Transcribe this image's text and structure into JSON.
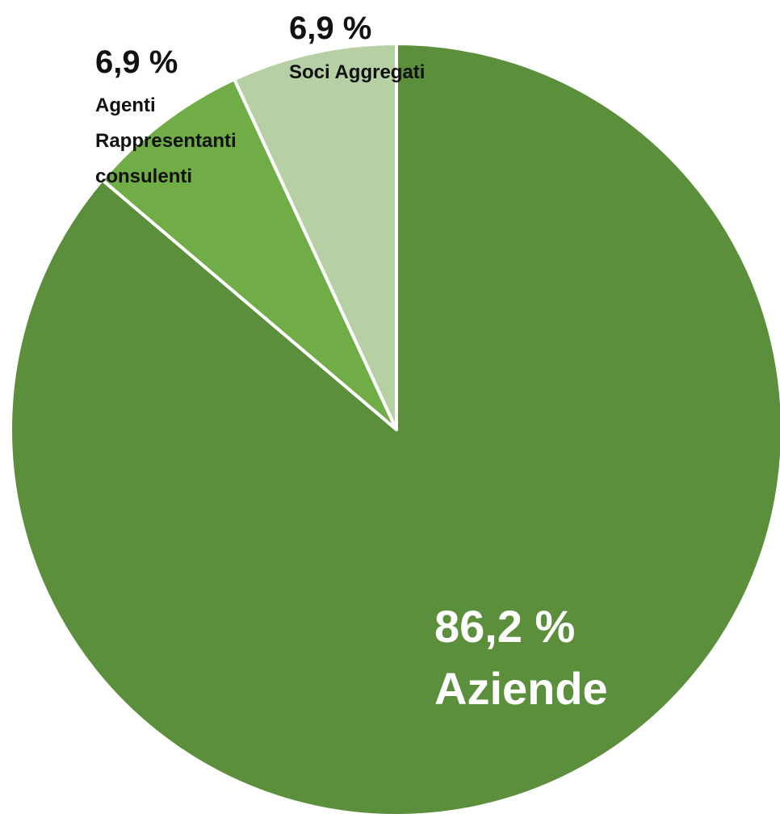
{
  "chart_data": {
    "type": "pie",
    "slices": [
      {
        "value_label": "86,2 %",
        "value": 86.2,
        "label_lines": [
          "Aziende"
        ],
        "color": "#5c8f3b"
      },
      {
        "value_label": "6,9 %",
        "value": 6.9,
        "label_lines": [
          "Agenti",
          "Rappresentanti",
          "consulenti"
        ],
        "color": "#70ad47"
      },
      {
        "value_label": "6,9 %",
        "value": 6.9,
        "label_lines": [
          "Soci Aggregati"
        ],
        "color": "#b6cfa5"
      }
    ],
    "start_angle_deg": 0,
    "direction": "clockwise",
    "slice_border_color": "#ffffff",
    "legend": "none"
  }
}
